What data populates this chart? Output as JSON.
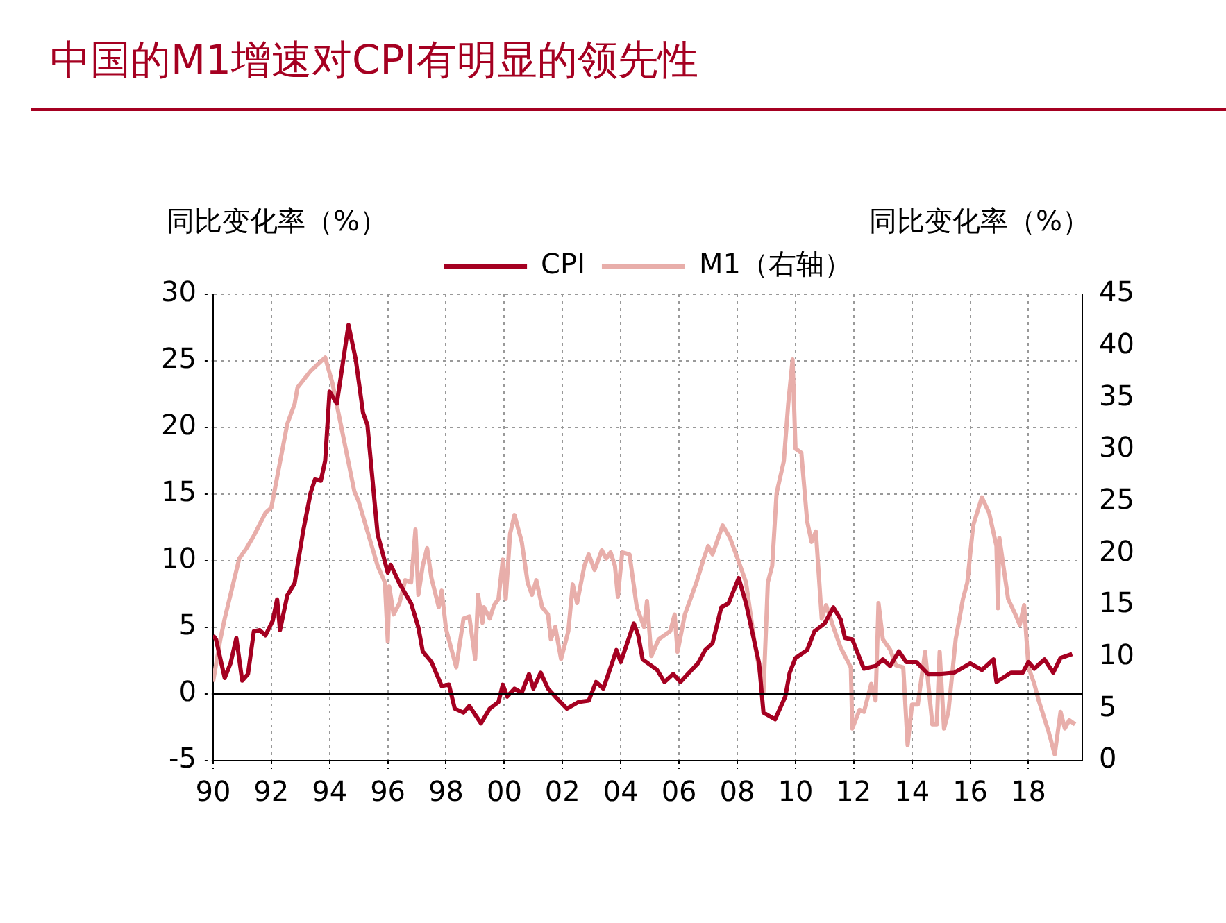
{
  "chart_data": {
    "type": "line",
    "title": "中国的M1增速对CPI有明显的领先性",
    "ylabel": "同比变化率（%）",
    "y2label": "同比变化率（%）",
    "xlim": [
      1990,
      2019.85
    ],
    "xticks": [
      {
        "value": 1990,
        "label": "90"
      },
      {
        "value": 1992,
        "label": "92"
      },
      {
        "value": 1994,
        "label": "94"
      },
      {
        "value": 1996,
        "label": "96"
      },
      {
        "value": 1998,
        "label": "98"
      },
      {
        "value": 2000,
        "label": "00"
      },
      {
        "value": 2002,
        "label": "02"
      },
      {
        "value": 2004,
        "label": "04"
      },
      {
        "value": 2006,
        "label": "06"
      },
      {
        "value": 2008,
        "label": "08"
      },
      {
        "value": 2010,
        "label": "10"
      },
      {
        "value": 2012,
        "label": "12"
      },
      {
        "value": 2014,
        "label": "14"
      },
      {
        "value": 2016,
        "label": "16"
      },
      {
        "value": 2018,
        "label": "18"
      }
    ],
    "ylim": [
      -5,
      30
    ],
    "yticks": [
      -5,
      0,
      5,
      10,
      15,
      20,
      25,
      30
    ],
    "y2lim": [
      0,
      45
    ],
    "y2ticks": [
      0,
      5,
      10,
      15,
      20,
      25,
      30,
      35,
      40,
      45
    ],
    "grid": true,
    "legend": "top",
    "marker": "none",
    "line_style": "solid",
    "ref_lines": [
      {
        "axis": "y",
        "value": 0,
        "color": "#000000"
      }
    ],
    "series": [
      {
        "name": "CPI",
        "color": "#a50021",
        "x": [
          1990.0,
          1990.1,
          1990.4,
          1990.6,
          1990.8,
          1991.0,
          1991.2,
          1991.4,
          1991.6,
          1991.8,
          1992.05,
          1992.2,
          1992.3,
          1992.55,
          1992.8,
          1993.1,
          1993.35,
          1993.5,
          1993.7,
          1993.85,
          1994.0,
          1994.25,
          1994.65,
          1994.9,
          1995.15,
          1995.3,
          1995.65,
          1996.0,
          1996.1,
          1996.4,
          1996.8,
          1997.05,
          1997.2,
          1997.5,
          1997.85,
          1998.1,
          1998.3,
          1998.6,
          1998.8,
          1999.2,
          1999.5,
          1999.8,
          1999.95,
          2000.1,
          2000.35,
          2000.6,
          2000.85,
          2001.0,
          2001.25,
          2001.5,
          2001.75,
          2002.15,
          2002.55,
          2002.9,
          2003.15,
          2003.4,
          2003.7,
          2003.85,
          2004.0,
          2004.45,
          2004.6,
          2004.75,
          2005.25,
          2005.5,
          2005.8,
          2006.05,
          2006.3,
          2006.65,
          2006.9,
          2007.15,
          2007.45,
          2007.7,
          2008.05,
          2008.3,
          2008.75,
          2008.9,
          2009.3,
          2009.65,
          2009.8,
          2010.0,
          2010.4,
          2010.65,
          2011.0,
          2011.3,
          2011.55,
          2011.7,
          2011.95,
          2012.2,
          2012.35,
          2012.75,
          2013.0,
          2013.25,
          2013.55,
          2013.8,
          2014.15,
          2014.55,
          2014.95,
          2015.45,
          2016.0,
          2016.4,
          2016.8,
          2016.9,
          2017.4,
          2017.8,
          2018.0,
          2018.2,
          2018.55,
          2018.85,
          2019.1,
          2019.5
        ],
        "values": [
          4.4,
          4.1,
          1.2,
          2.3,
          4.2,
          1.0,
          1.5,
          4.7,
          4.8,
          4.4,
          5.5,
          7.1,
          4.8,
          7.4,
          8.3,
          12.3,
          15.1,
          16.1,
          16.0,
          17.5,
          22.7,
          21.8,
          27.7,
          25.1,
          21.1,
          20.2,
          12.0,
          9.1,
          9.7,
          8.3,
          6.8,
          5.0,
          3.2,
          2.4,
          0.6,
          0.7,
          -1.1,
          -1.4,
          -0.9,
          -2.2,
          -1.1,
          -0.6,
          0.7,
          -0.2,
          0.4,
          0.1,
          1.5,
          0.4,
          1.6,
          0.4,
          -0.2,
          -1.1,
          -0.6,
          -0.5,
          0.9,
          0.4,
          2.3,
          3.3,
          2.4,
          5.3,
          4.4,
          2.6,
          1.8,
          0.9,
          1.5,
          0.9,
          1.5,
          2.3,
          3.3,
          3.8,
          6.5,
          6.8,
          8.7,
          6.8,
          2.3,
          -1.4,
          -1.9,
          -0.2,
          1.6,
          2.7,
          3.3,
          4.7,
          5.3,
          6.5,
          5.6,
          4.2,
          4.1,
          2.7,
          1.9,
          2.1,
          2.6,
          2.1,
          3.2,
          2.4,
          2.4,
          1.5,
          1.5,
          1.6,
          2.3,
          1.8,
          2.6,
          0.9,
          1.6,
          1.6,
          2.4,
          1.9,
          2.6,
          1.6,
          2.7,
          3.0
        ]
      },
      {
        "name": "M1（右轴）",
        "color": "#e8aeaa",
        "axis": "y2",
        "x": [
          1990.0,
          1990.25,
          1990.4,
          1990.9,
          1991.15,
          1991.4,
          1991.8,
          1992.0,
          1992.55,
          1992.8,
          1992.9,
          1993.35,
          1993.85,
          1994.1,
          1994.85,
          1995.0,
          1995.65,
          1995.9,
          1996.0,
          1996.05,
          1996.2,
          1996.4,
          1996.6,
          1996.8,
          1996.95,
          1997.05,
          1997.2,
          1997.35,
          1997.5,
          1997.75,
          1997.85,
          1998.0,
          1998.35,
          1998.6,
          1998.8,
          1999.0,
          1999.1,
          1999.25,
          1999.3,
          1999.5,
          1999.65,
          1999.8,
          1999.95,
          2000.05,
          2000.2,
          2000.35,
          2000.6,
          2000.8,
          2000.95,
          2001.1,
          2001.3,
          2001.5,
          2001.6,
          2001.75,
          2001.95,
          2002.2,
          2002.35,
          2002.5,
          2002.75,
          2002.9,
          2003.1,
          2003.35,
          2003.5,
          2003.65,
          2003.8,
          2003.9,
          2004.05,
          2004.3,
          2004.55,
          2004.8,
          2004.9,
          2005.05,
          2005.3,
          2005.7,
          2005.85,
          2005.95,
          2006.2,
          2006.6,
          2006.85,
          2007.0,
          2007.15,
          2007.5,
          2007.75,
          2008.05,
          2008.3,
          2008.6,
          2008.9,
          2009.05,
          2009.2,
          2009.35,
          2009.6,
          2009.75,
          2009.9,
          2010.0,
          2010.2,
          2010.4,
          2010.55,
          2010.7,
          2010.9,
          2011.05,
          2011.3,
          2011.55,
          2011.9,
          2011.95,
          2012.2,
          2012.35,
          2012.6,
          2012.75,
          2012.85,
          2013.0,
          2013.25,
          2013.45,
          2013.7,
          2013.85,
          2014.0,
          2014.2,
          2014.45,
          2014.7,
          2014.85,
          2014.95,
          2015.1,
          2015.25,
          2015.5,
          2015.75,
          2015.9,
          2016.1,
          2016.4,
          2016.65,
          2016.9,
          2016.95,
          2017.0,
          2017.3,
          2017.55,
          2017.7,
          2017.85,
          2018.0,
          2018.2,
          2018.35,
          2018.7,
          2018.9,
          2019.1,
          2019.25,
          2019.4,
          2019.6
        ],
        "values": [
          7.6,
          11.7,
          13.7,
          19.5,
          20.5,
          21.7,
          23.9,
          24.4,
          32.5,
          34.4,
          36.0,
          37.6,
          38.9,
          36.4,
          26.0,
          25.0,
          18.8,
          17.2,
          11.5,
          16.8,
          14.1,
          15.2,
          17.4,
          17.2,
          22.3,
          16.0,
          18.8,
          20.5,
          17.6,
          14.8,
          16.4,
          12.7,
          9.0,
          13.7,
          13.9,
          9.8,
          16.0,
          13.3,
          14.8,
          13.7,
          15.0,
          15.6,
          19.4,
          15.6,
          21.9,
          23.7,
          21.1,
          17.2,
          16.0,
          17.4,
          14.8,
          14.1,
          11.7,
          12.9,
          9.8,
          12.5,
          17.0,
          15.2,
          18.8,
          19.9,
          18.4,
          20.3,
          19.5,
          20.1,
          18.8,
          15.8,
          20.1,
          19.9,
          14.8,
          12.9,
          15.4,
          10.1,
          11.7,
          12.5,
          14.1,
          10.5,
          14.1,
          17.2,
          19.5,
          20.7,
          19.9,
          22.7,
          21.5,
          19.2,
          17.2,
          11.3,
          6.6,
          17.2,
          18.8,
          25.8,
          28.9,
          34.4,
          38.7,
          30.1,
          29.7,
          23.1,
          21.1,
          22.1,
          13.7,
          15.0,
          12.9,
          10.9,
          9.0,
          3.1,
          4.9,
          4.7,
          7.4,
          5.8,
          15.2,
          11.7,
          10.7,
          9.2,
          9.0,
          1.5,
          5.4,
          5.4,
          10.5,
          3.5,
          3.5,
          10.5,
          3.1,
          4.7,
          11.7,
          15.6,
          17.2,
          22.7,
          25.4,
          23.9,
          20.7,
          14.7,
          21.5,
          15.6,
          14.1,
          13.1,
          15.0,
          9.0,
          7.4,
          5.8,
          2.7,
          0.6,
          4.7,
          3.1,
          3.9,
          3.5
        ]
      }
    ]
  }
}
